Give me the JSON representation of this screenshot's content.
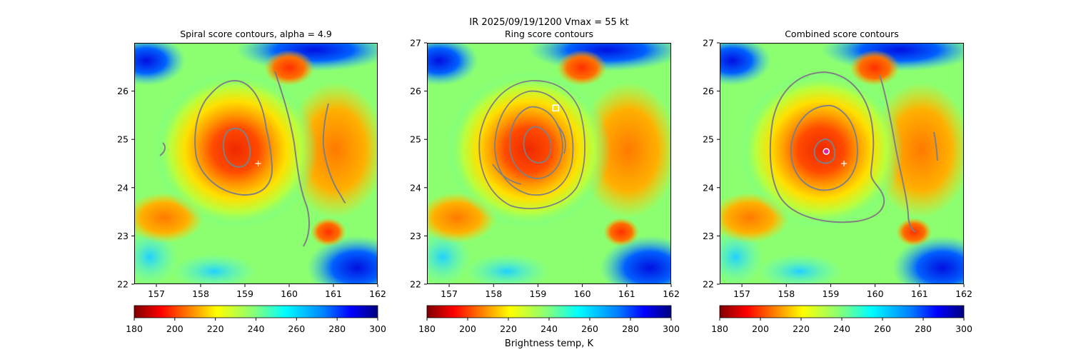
{
  "figure_title": "IR  2025/09/19/1200    Vmax = 55 kt",
  "colorbar_label": "Brightness temp, K",
  "chart_data": [
    {
      "type": "heatmap",
      "title": "Spiral score contours, alpha =  4.9",
      "xlim": [
        156.5,
        162.0
      ],
      "ylim": [
        22.0,
        27.0
      ],
      "xticks": [
        157,
        158,
        159,
        160,
        161,
        162
      ],
      "yticks": [
        22,
        23,
        24,
        25,
        26
      ],
      "colorbar": {
        "range": [
          180,
          300
        ],
        "ticks": [
          180,
          200,
          220,
          240,
          260,
          280,
          300
        ],
        "colormap": "jet_r"
      },
      "center_marker": {
        "symbol": "+",
        "lon": 159.3,
        "lat": 24.5
      },
      "contours": "spiral score"
    },
    {
      "type": "heatmap",
      "title": "Ring score contours",
      "xlim": [
        156.5,
        162.0
      ],
      "ylim": [
        22.0,
        27.0
      ],
      "xticks": [
        157,
        158,
        159,
        160,
        161,
        162
      ],
      "yticks": [
        22,
        23,
        24,
        25,
        26,
        27
      ],
      "colorbar": {
        "range": [
          180,
          300
        ],
        "ticks": [
          180,
          200,
          220,
          240,
          260,
          280,
          300
        ],
        "colormap": "jet_r"
      },
      "center_marker": {
        "symbol": "square",
        "lon": 159.4,
        "lat": 25.65
      },
      "contours": "ring score"
    },
    {
      "type": "heatmap",
      "title": "Combined score contours",
      "xlim": [
        156.5,
        162.0
      ],
      "ylim": [
        22.0,
        27.0
      ],
      "xticks": [
        157,
        158,
        159,
        160,
        161,
        162
      ],
      "yticks": [
        22,
        23,
        24,
        25,
        26,
        27
      ],
      "colorbar": {
        "range": [
          180,
          300
        ],
        "ticks": [
          180,
          200,
          220,
          240,
          260,
          280,
          300
        ],
        "colormap": "jet_r"
      },
      "center_marker": {
        "symbol": "+",
        "lon": 159.3,
        "lat": 24.5
      },
      "combined_marker": {
        "symbol": "circle",
        "lon": 158.9,
        "lat": 24.75
      },
      "contours": "combined score"
    }
  ]
}
